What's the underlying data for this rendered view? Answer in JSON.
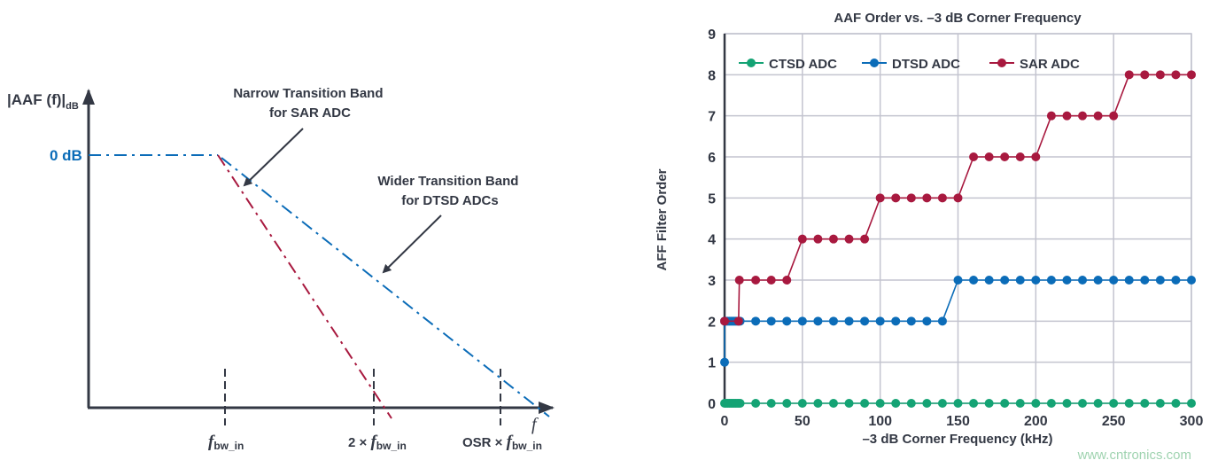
{
  "diagram": {
    "y_axis_label": "|AAF (f)|",
    "y_axis_label_sub": "dB",
    "zero_db_label": "0 dB",
    "x_axis_label": "f",
    "narrow_label_line1": "Narrow Transition Band",
    "narrow_label_line2": "for SAR ADC",
    "wider_label_line1": "Wider Transition Band",
    "wider_label_line2": "for DTSD ADCs",
    "tick_labels": [
      {
        "prefix": "",
        "f": "f",
        "sub": "bw_in"
      },
      {
        "prefix": "2 × ",
        "f": "f",
        "sub": "bw_in"
      },
      {
        "prefix": "OSR × ",
        "f": "f",
        "sub": "bw_in"
      }
    ],
    "colors": {
      "sar": "#a8193f",
      "dtsd": "#0b6cb8",
      "axis": "#333844"
    }
  },
  "chart_data": {
    "type": "line",
    "title": "AAF Order vs. –3 dB Corner Frequency",
    "xlabel": "–3 dB Corner Frequency (kHz)",
    "ylabel": "AFF Filter Order",
    "xlim": [
      0,
      300
    ],
    "ylim": [
      0,
      9
    ],
    "xticks": [
      "0",
      "50",
      "100",
      "150",
      "200",
      "250",
      "300"
    ],
    "yticks": [
      "0",
      "1",
      "2",
      "3",
      "4",
      "5",
      "6",
      "7",
      "8",
      "9"
    ],
    "grid": true,
    "legend_position": "top",
    "series": [
      {
        "name": "CTSD ADC",
        "color": "#14a374",
        "x": [
          0,
          1,
          2,
          3,
          4,
          5,
          6,
          7,
          8,
          9,
          10,
          20,
          30,
          40,
          50,
          60,
          70,
          80,
          90,
          100,
          110,
          120,
          130,
          140,
          150,
          160,
          170,
          180,
          190,
          200,
          210,
          220,
          230,
          240,
          250,
          260,
          270,
          280,
          290,
          300
        ],
        "y": [
          0,
          0,
          0,
          0,
          0,
          0,
          0,
          0,
          0,
          0,
          0,
          0,
          0,
          0,
          0,
          0,
          0,
          0,
          0,
          0,
          0,
          0,
          0,
          0,
          0,
          0,
          0,
          0,
          0,
          0,
          0,
          0,
          0,
          0,
          0,
          0,
          0,
          0,
          0,
          0
        ]
      },
      {
        "name": "DTSD ADC",
        "color": "#0b6cb8",
        "x": [
          0,
          0,
          1,
          2,
          3,
          4,
          5,
          6,
          7,
          8,
          9,
          10,
          20,
          30,
          40,
          50,
          60,
          70,
          80,
          90,
          100,
          110,
          120,
          130,
          140,
          150,
          160,
          170,
          180,
          190,
          200,
          210,
          220,
          230,
          240,
          250,
          260,
          270,
          280,
          290,
          300
        ],
        "y": [
          1,
          2,
          2,
          2,
          2,
          2,
          2,
          2,
          2,
          2,
          2,
          2,
          2,
          2,
          2,
          2,
          2,
          2,
          2,
          2,
          2,
          2,
          2,
          2,
          2,
          3,
          3,
          3,
          3,
          3,
          3,
          3,
          3,
          3,
          3,
          3,
          3,
          3,
          3,
          3,
          3
        ]
      },
      {
        "name": "SAR ADC",
        "color": "#a8193f",
        "x": [
          0,
          9,
          9.5,
          20,
          30,
          40,
          50,
          60,
          70,
          80,
          90,
          100,
          110,
          120,
          130,
          140,
          150,
          160,
          170,
          180,
          190,
          200,
          210,
          220,
          230,
          240,
          250,
          260,
          270,
          280,
          290,
          300
        ],
        "y": [
          2,
          2,
          3,
          3,
          3,
          3,
          4,
          4,
          4,
          4,
          4,
          5,
          5,
          5,
          5,
          5,
          5,
          6,
          6,
          6,
          6,
          6,
          7,
          7,
          7,
          7,
          7,
          8,
          8,
          8,
          8,
          8
        ]
      }
    ]
  },
  "watermark": "www.cntronics.com"
}
